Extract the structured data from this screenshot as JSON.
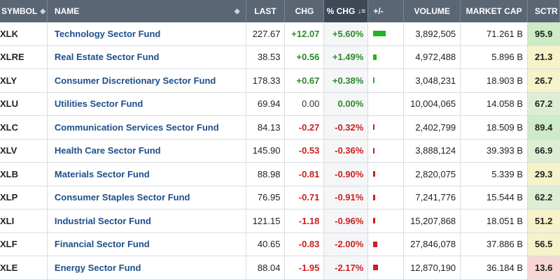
{
  "columns": {
    "symbol": "SYMBOL",
    "name": "NAME",
    "last": "LAST",
    "chg": "CHG",
    "pct_chg": "% CHG",
    "plus_minus": "+/-",
    "volume": "VOLUME",
    "market_cap": "MARKET CAP",
    "sctr": "SCTR"
  },
  "rows": [
    {
      "symbol": "XLK",
      "name": "Technology Sector Fund",
      "last": "227.67",
      "chg": "+12.07",
      "pct": "+5.60%",
      "volume": "3,892,505",
      "mcap": "71.261 B",
      "sctr": "95.9",
      "sign": "pos",
      "pct_value": 5.6,
      "sctr_color": "#cdebc6"
    },
    {
      "symbol": "XLRE",
      "name": "Real Estate Sector Fund",
      "last": "38.53",
      "chg": "+0.56",
      "pct": "+1.49%",
      "volume": "4,972,488",
      "mcap": "5.896 B",
      "sctr": "21.3",
      "sign": "pos",
      "pct_value": 1.49,
      "sctr_color": "#f6f2c9"
    },
    {
      "symbol": "XLY",
      "name": "Consumer Discretionary Sector Fund",
      "last": "178.33",
      "chg": "+0.67",
      "pct": "+0.38%",
      "volume": "3,048,231",
      "mcap": "18.903 B",
      "sctr": "26.7",
      "sign": "pos",
      "pct_value": 0.38,
      "sctr_color": "#f6f2c9"
    },
    {
      "symbol": "XLU",
      "name": "Utilities Sector Fund",
      "last": "69.94",
      "chg": "0.00",
      "pct": "0.00%",
      "volume": "10,004,065",
      "mcap": "14.058 B",
      "sctr": "67.2",
      "sign": "zero",
      "pct_value": 0.0,
      "sctr_color": "#dcefd3"
    },
    {
      "symbol": "XLC",
      "name": "Communication Services Sector Fund",
      "last": "84.13",
      "chg": "-0.27",
      "pct": "-0.32%",
      "volume": "2,402,799",
      "mcap": "18.509 B",
      "sctr": "89.4",
      "sign": "neg",
      "pct_value": -0.32,
      "sctr_color": "#cdebc6"
    },
    {
      "symbol": "XLV",
      "name": "Health Care Sector Fund",
      "last": "145.90",
      "chg": "-0.53",
      "pct": "-0.36%",
      "volume": "3,888,124",
      "mcap": "39.393 B",
      "sctr": "66.9",
      "sign": "neg",
      "pct_value": -0.36,
      "sctr_color": "#dcefd3"
    },
    {
      "symbol": "XLB",
      "name": "Materials Sector Fund",
      "last": "88.98",
      "chg": "-0.81",
      "pct": "-0.90%",
      "volume": "2,820,075",
      "mcap": "5.339 B",
      "sctr": "29.3",
      "sign": "neg",
      "pct_value": -0.9,
      "sctr_color": "#f6f2c9"
    },
    {
      "symbol": "XLP",
      "name": "Consumer Staples Sector Fund",
      "last": "76.95",
      "chg": "-0.71",
      "pct": "-0.91%",
      "volume": "7,241,776",
      "mcap": "15.544 B",
      "sctr": "62.2",
      "sign": "neg",
      "pct_value": -0.91,
      "sctr_color": "#dcefd3"
    },
    {
      "symbol": "XLI",
      "name": "Industrial Sector Fund",
      "last": "121.15",
      "chg": "-1.18",
      "pct": "-0.96%",
      "volume": "15,207,868",
      "mcap": "18.051 B",
      "sctr": "51.2",
      "sign": "neg",
      "pct_value": -0.96,
      "sctr_color": "#f6f2c9"
    },
    {
      "symbol": "XLF",
      "name": "Financial Sector Fund",
      "last": "40.65",
      "chg": "-0.83",
      "pct": "-2.00%",
      "volume": "27,846,078",
      "mcap": "37.886 B",
      "sctr": "56.5",
      "sign": "neg",
      "pct_value": -2.0,
      "sctr_color": "#f6f2c9"
    },
    {
      "symbol": "XLE",
      "name": "Energy Sector Fund",
      "last": "88.04",
      "chg": "-1.95",
      "pct": "-2.17%",
      "volume": "12,870,190",
      "mcap": "36.184 B",
      "sctr": "13.6",
      "sign": "neg",
      "pct_value": -2.17,
      "sctr_color": "#f7d6d6"
    }
  ],
  "colors": {
    "positive": "#2a8a2a",
    "negative": "#cc1f1f",
    "bar_positive": "#22b422",
    "bar_negative": "#cc1f1f"
  }
}
